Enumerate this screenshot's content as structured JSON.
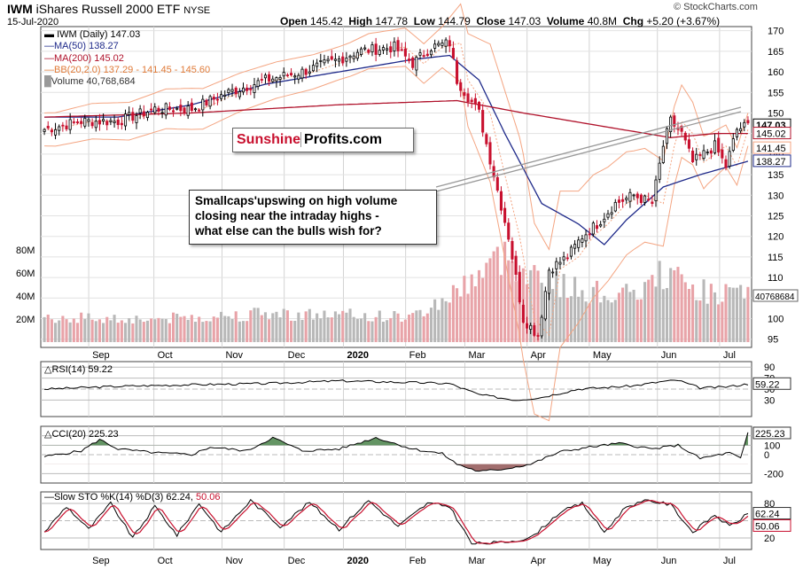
{
  "header": {
    "ticker": "IWM",
    "name": "iShares Russell 2000 ETF",
    "exchange": "NYSE",
    "date": "15-Jul-2020",
    "open_label": "Open",
    "open": "145.42",
    "high_label": "High",
    "high": "147.78",
    "low_label": "Low",
    "low": "144.79",
    "close_label": "Close",
    "close": "147.03",
    "volume_label": "Volume",
    "volume": "40.8M",
    "chg_label": "Chg",
    "chg": "+5.20 (+3.67%)",
    "copyright": "© StockCharts.com"
  },
  "legend": {
    "main": "IWM (Daily) 147.03",
    "ma50": "MA(50) 138.27",
    "ma200": "MA(200) 145.02",
    "bb": "BB(20,2.0) 137.29 - 141.45 - 145.60",
    "volume": "Volume 40,768,684"
  },
  "brand": {
    "part1": "Sunshine",
    "part2": "Profits.com"
  },
  "annotation": {
    "lines": [
      "Smallcaps'upswing on high volume",
      "closing near the intraday highs -",
      "what else can the bulls wish for?"
    ]
  },
  "colors": {
    "up": "#000000",
    "down": "#c8102e",
    "ma50": "#1f2a8a",
    "ma200": "#b0122b",
    "bb": "#f4a582",
    "vol_up": "#b8b8b8",
    "vol_down": "#e8a3a8",
    "osc_fill_pos": "#3d7a3d",
    "osc_fill_neg": "#8a4a4a"
  },
  "chart_data": [
    {
      "type": "candlestick",
      "title": "IWM (Daily) 147.03",
      "x_labels": [
        "Sep",
        "Oct",
        "Nov",
        "Dec",
        "2020",
        "Feb",
        "Mar",
        "Apr",
        "May",
        "Jun",
        "Jul"
      ],
      "ylim": [
        93,
        171
      ],
      "y_ticks": [
        95,
        100,
        105,
        110,
        115,
        120,
        125,
        130,
        135,
        140,
        145,
        150,
        155,
        160,
        165,
        170
      ],
      "price_tags": [
        "147.03",
        "145.02",
        "141.45",
        "138.27"
      ],
      "volume_ticks": [
        "20M",
        "40M",
        "60M",
        "80M"
      ],
      "volume_tag": "40768684",
      "close_anchors": [
        [
          0,
          146
        ],
        [
          10,
          148
        ],
        [
          20,
          148
        ],
        [
          30,
          151
        ],
        [
          40,
          151
        ],
        [
          50,
          155
        ],
        [
          60,
          158
        ],
        [
          70,
          160
        ],
        [
          80,
          163
        ],
        [
          85,
          165
        ],
        [
          95,
          166
        ],
        [
          100,
          162
        ],
        [
          105,
          166
        ],
        [
          110,
          167
        ],
        [
          112,
          158
        ],
        [
          118,
          150
        ],
        [
          122,
          135
        ],
        [
          126,
          120
        ],
        [
          130,
          100
        ],
        [
          134,
          96
        ],
        [
          137,
          112
        ],
        [
          142,
          115
        ],
        [
          146,
          120
        ],
        [
          150,
          123
        ],
        [
          155,
          128
        ],
        [
          160,
          130
        ],
        [
          165,
          128
        ],
        [
          168,
          142
        ],
        [
          170,
          148
        ],
        [
          173,
          145
        ],
        [
          176,
          138
        ],
        [
          179,
          140
        ],
        [
          182,
          142
        ],
        [
          185,
          137
        ],
        [
          188,
          146
        ],
        [
          191,
          147
        ]
      ],
      "ma50_anchors": [
        [
          0,
          149
        ],
        [
          20,
          149
        ],
        [
          40,
          152
        ],
        [
          60,
          157
        ],
        [
          80,
          160
        ],
        [
          100,
          163
        ],
        [
          110,
          164
        ],
        [
          118,
          158
        ],
        [
          125,
          145
        ],
        [
          135,
          128
        ],
        [
          145,
          123
        ],
        [
          152,
          118
        ],
        [
          158,
          124
        ],
        [
          168,
          132
        ],
        [
          178,
          135
        ],
        [
          191,
          138.27
        ]
      ],
      "ma200_anchors": [
        [
          0,
          149
        ],
        [
          40,
          150
        ],
        [
          80,
          152
        ],
        [
          112,
          153
        ],
        [
          130,
          150
        ],
        [
          150,
          147
        ],
        [
          170,
          144
        ],
        [
          182,
          145
        ],
        [
          191,
          145.02
        ]
      ],
      "bb_width_anchors": [
        [
          0,
          4
        ],
        [
          40,
          5
        ],
        [
          80,
          4
        ],
        [
          108,
          5
        ],
        [
          118,
          14
        ],
        [
          130,
          25
        ],
        [
          145,
          16
        ],
        [
          160,
          12
        ],
        [
          170,
          10
        ],
        [
          180,
          6
        ],
        [
          191,
          4
        ]
      ],
      "volume_anchors": [
        [
          0,
          22
        ],
        [
          30,
          20
        ],
        [
          60,
          25
        ],
        [
          100,
          22
        ],
        [
          110,
          40
        ],
        [
          118,
          60
        ],
        [
          125,
          75
        ],
        [
          135,
          55
        ],
        [
          145,
          45
        ],
        [
          160,
          40
        ],
        [
          168,
          60
        ],
        [
          178,
          45
        ],
        [
          191,
          40
        ]
      ]
    },
    {
      "type": "line",
      "title": "RSI(14) 59.22",
      "last": "59.22",
      "ylim": [
        0,
        100
      ],
      "y_ticks": [
        30,
        50,
        70,
        90
      ],
      "anchors": [
        [
          0,
          50
        ],
        [
          20,
          55
        ],
        [
          40,
          58
        ],
        [
          60,
          60
        ],
        [
          80,
          65
        ],
        [
          100,
          62
        ],
        [
          110,
          60
        ],
        [
          118,
          40
        ],
        [
          128,
          30
        ],
        [
          135,
          35
        ],
        [
          145,
          50
        ],
        [
          160,
          56
        ],
        [
          168,
          64
        ],
        [
          172,
          66
        ],
        [
          178,
          52
        ],
        [
          185,
          54
        ],
        [
          191,
          59.22
        ]
      ]
    },
    {
      "type": "line",
      "title": "CCI(20) 225.23",
      "last": "225.23",
      "ylim": [
        -300,
        300
      ],
      "y_ticks": [
        -200,
        0,
        100,
        200
      ],
      "anchors": [
        [
          0,
          -20
        ],
        [
          10,
          40
        ],
        [
          15,
          160
        ],
        [
          20,
          60
        ],
        [
          30,
          20
        ],
        [
          40,
          0
        ],
        [
          45,
          80
        ],
        [
          55,
          40
        ],
        [
          62,
          180
        ],
        [
          70,
          40
        ],
        [
          80,
          60
        ],
        [
          90,
          180
        ],
        [
          100,
          60
        ],
        [
          108,
          10
        ],
        [
          112,
          -100
        ],
        [
          118,
          -180
        ],
        [
          125,
          -150
        ],
        [
          132,
          -100
        ],
        [
          140,
          30
        ],
        [
          148,
          80
        ],
        [
          156,
          120
        ],
        [
          165,
          60
        ],
        [
          172,
          100
        ],
        [
          178,
          -40
        ],
        [
          186,
          20
        ],
        [
          189,
          -40
        ],
        [
          191,
          225.23
        ]
      ]
    },
    {
      "type": "line",
      "title": "Slow STO %K(14) %D(3)",
      "k_label": "62.24,",
      "d_label": "50.06",
      "k_last": "62.24",
      "d_last": "50.06",
      "ylim": [
        0,
        100
      ],
      "y_ticks": [
        20,
        50,
        80
      ],
      "anchors": [
        [
          0,
          30
        ],
        [
          6,
          75
        ],
        [
          12,
          35
        ],
        [
          18,
          80
        ],
        [
          24,
          20
        ],
        [
          30,
          75
        ],
        [
          36,
          25
        ],
        [
          42,
          80
        ],
        [
          48,
          30
        ],
        [
          56,
          85
        ],
        [
          64,
          40
        ],
        [
          72,
          82
        ],
        [
          80,
          35
        ],
        [
          88,
          85
        ],
        [
          96,
          40
        ],
        [
          104,
          80
        ],
        [
          110,
          75
        ],
        [
          116,
          10
        ],
        [
          124,
          12
        ],
        [
          132,
          20
        ],
        [
          140,
          65
        ],
        [
          146,
          80
        ],
        [
          152,
          30
        ],
        [
          158,
          75
        ],
        [
          164,
          85
        ],
        [
          170,
          78
        ],
        [
          176,
          30
        ],
        [
          182,
          60
        ],
        [
          186,
          40
        ],
        [
          191,
          62
        ]
      ]
    }
  ]
}
